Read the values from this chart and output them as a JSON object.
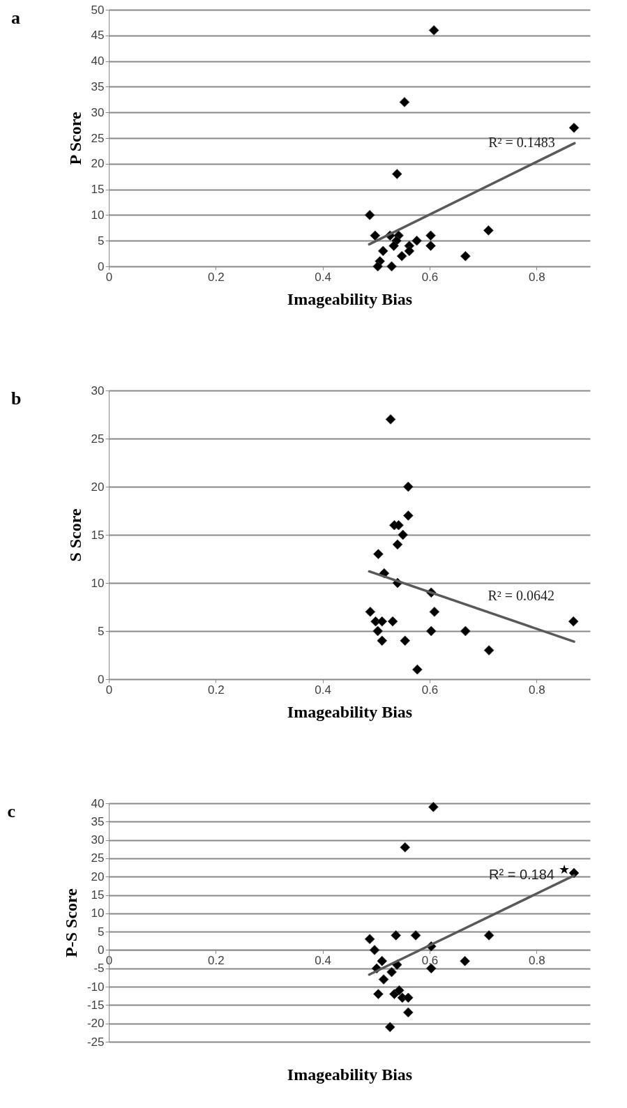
{
  "chart_data": [
    {
      "type": "scatter",
      "title": "a",
      "xlabel": "Imageability Bias",
      "ylabel": "P Score",
      "xlim": [
        0,
        0.9
      ],
      "xticks": [
        0,
        0.2,
        0.4,
        0.6,
        0.8
      ],
      "ylim": [
        0,
        50
      ],
      "yticks": [
        0,
        5,
        10,
        15,
        20,
        25,
        30,
        35,
        40,
        45,
        50
      ],
      "grid": "y",
      "series": [
        {
          "type": "scatter",
          "marker": "diamond",
          "color": "#000000",
          "x": [
            0.608,
            0.553,
            0.539,
            0.488,
            0.87,
            0.71,
            0.667,
            0.602,
            0.602,
            0.498,
            0.576,
            0.526,
            0.542,
            0.538,
            0.533,
            0.562,
            0.562,
            0.548,
            0.513,
            0.507,
            0.503,
            0.529
          ],
          "values": [
            46,
            32,
            18,
            10,
            27,
            7,
            2,
            6,
            4,
            6,
            5,
            6,
            6,
            5,
            4,
            4,
            3,
            2,
            3,
            1,
            0,
            0
          ]
        },
        {
          "type": "line",
          "line_style": "solid",
          "color": "#595959",
          "x": [
            0.487,
            0.871
          ],
          "values": [
            4.3,
            24.0
          ]
        }
      ],
      "annotations": [
        "R² = 0.1483"
      ]
    },
    {
      "type": "scatter",
      "title": "b",
      "xlabel": "Imageability Bias",
      "ylabel": "S Score",
      "xlim": [
        0,
        0.9
      ],
      "xticks": [
        0,
        0.2,
        0.4,
        0.6,
        0.8
      ],
      "ylim": [
        0,
        30
      ],
      "yticks": [
        0,
        5,
        10,
        15,
        20,
        25,
        30
      ],
      "grid": "y",
      "series": [
        {
          "type": "scatter",
          "marker": "diamond",
          "color": "#000000",
          "x": [
            0.527,
            0.56,
            0.56,
            0.534,
            0.542,
            0.55,
            0.54,
            0.504,
            0.515,
            0.54,
            0.603,
            0.609,
            0.489,
            0.499,
            0.511,
            0.531,
            0.503,
            0.603,
            0.667,
            0.511,
            0.554,
            0.711,
            0.577,
            0.869
          ],
          "values": [
            27,
            20,
            17,
            16,
            16,
            15,
            14,
            13,
            11,
            10,
            9,
            7,
            7,
            6,
            6,
            6,
            5,
            5,
            5,
            4,
            4,
            3,
            1,
            6
          ]
        },
        {
          "type": "line",
          "line_style": "solid",
          "color": "#595959",
          "x": [
            0.487,
            0.87
          ],
          "values": [
            11.2,
            3.9
          ]
        }
      ],
      "annotations": [
        "R² = 0.0642"
      ]
    },
    {
      "type": "scatter",
      "title": "c",
      "xlabel": "Imageability Bias",
      "ylabel": "P-S Score",
      "xlim": [
        0,
        0.9
      ],
      "xticks": [
        0,
        0.2,
        0.4,
        0.6,
        0.8
      ],
      "ylim": [
        -25,
        40
      ],
      "yticks": [
        -25,
        -20,
        -15,
        -10,
        -5,
        0,
        5,
        10,
        15,
        20,
        25,
        30,
        35,
        40
      ],
      "grid": "y",
      "series": [
        {
          "type": "scatter",
          "marker": "diamond",
          "color": "#000000",
          "x": [
            0.607,
            0.554,
            0.87,
            0.488,
            0.537,
            0.574,
            0.711,
            0.497,
            0.603,
            0.666,
            0.511,
            0.501,
            0.539,
            0.603,
            0.529,
            0.514,
            0.504,
            0.534,
            0.543,
            0.549,
            0.56,
            0.56,
            0.526
          ],
          "values": [
            39,
            28,
            21,
            3,
            4,
            4,
            4,
            0,
            1,
            -3,
            -3,
            -5,
            -4,
            -5,
            -6,
            -8,
            -12,
            -12,
            -11,
            -13,
            -13,
            -17,
            -21
          ]
        },
        {
          "type": "line",
          "line_style": "solid",
          "color": "#595959",
          "x": [
            0.487,
            0.87
          ],
          "values": [
            -6.7,
            20.3
          ]
        }
      ],
      "annotations": [
        "R² = 0.184",
        "★"
      ]
    }
  ]
}
